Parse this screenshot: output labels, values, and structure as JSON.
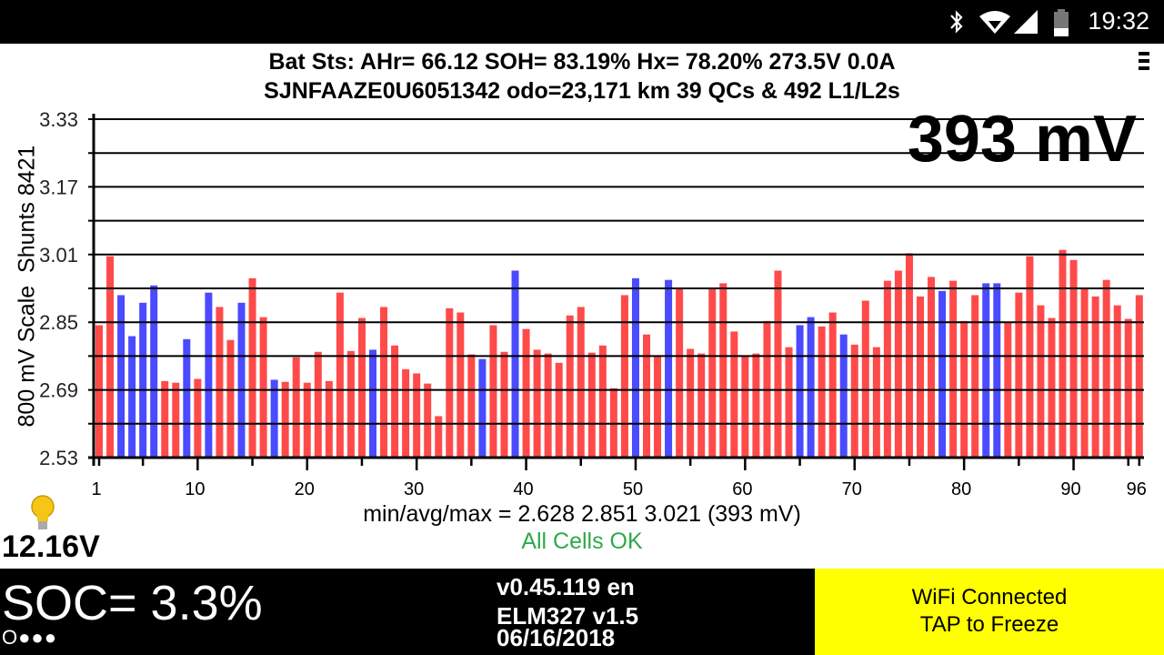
{
  "status_bar": {
    "time": "19:32",
    "icons": [
      "bluetooth-icon",
      "wifi-icon",
      "signal-icon",
      "battery-icon"
    ]
  },
  "header": {
    "line1": "Bat Sts:  AHr= 66.12  SOH= 83.19%   Hx= 78.20%   273.5V 0.0A",
    "line2": "SJNFAAZE0U6051342 odo=23,171 km  39 QCs & 492 L1/L2s",
    "delta_big": "393 mV"
  },
  "colors": {
    "normal_bar": "#ff4a4a",
    "shunt_bar": "#4a4aff",
    "ok_text": "#2fa84a",
    "wifi_bg": "#ffff00"
  },
  "chart_data": {
    "type": "bar",
    "title": "",
    "ylabel": "800 mV Scale  Shunts 8421",
    "xlabel": "",
    "ylim": [
      2.53,
      3.33
    ],
    "yticks": [
      "3.33",
      "3.17",
      "3.01",
      "2.85",
      "2.69",
      "2.53"
    ],
    "xticks": [
      "1",
      "10",
      "20",
      "30",
      "40",
      "50",
      "60",
      "70",
      "80",
      "90",
      "96"
    ],
    "xtick_values": [
      1,
      10,
      20,
      30,
      40,
      50,
      60,
      70,
      80,
      90,
      96
    ],
    "grid": true,
    "cells": [
      1,
      2,
      3,
      4,
      5,
      6,
      7,
      8,
      9,
      10,
      11,
      12,
      13,
      14,
      15,
      16,
      17,
      18,
      19,
      20,
      21,
      22,
      23,
      24,
      25,
      26,
      27,
      28,
      29,
      30,
      31,
      32,
      33,
      34,
      35,
      36,
      37,
      38,
      39,
      40,
      41,
      42,
      43,
      44,
      45,
      46,
      47,
      48,
      49,
      50,
      51,
      52,
      53,
      54,
      55,
      56,
      57,
      58,
      59,
      60,
      61,
      62,
      63,
      64,
      65,
      66,
      67,
      68,
      69,
      70,
      71,
      72,
      73,
      74,
      75,
      76,
      77,
      78,
      79,
      80,
      81,
      82,
      83,
      84,
      85,
      86,
      87,
      88,
      89,
      90,
      91,
      92,
      93,
      94,
      95,
      96
    ],
    "values": [
      2.843,
      3.006,
      2.914,
      2.817,
      2.896,
      2.937,
      2.711,
      2.707,
      2.81,
      2.716,
      2.92,
      2.886,
      2.808,
      2.896,
      2.954,
      2.862,
      2.714,
      2.709,
      2.767,
      2.707,
      2.78,
      2.711,
      2.92,
      2.782,
      2.86,
      2.785,
      2.886,
      2.795,
      2.739,
      2.729,
      2.705,
      2.628,
      2.883,
      2.873,
      2.774,
      2.763,
      2.843,
      2.78,
      2.972,
      2.834,
      2.785,
      2.776,
      2.754,
      2.866,
      2.886,
      2.778,
      2.795,
      2.694,
      2.914,
      2.954,
      2.821,
      2.769,
      2.95,
      2.931,
      2.787,
      2.776,
      2.931,
      2.942,
      2.828,
      2.772,
      2.776,
      2.853,
      2.972,
      2.791,
      2.843,
      2.862,
      2.84,
      2.873,
      2.821,
      2.797,
      2.901,
      2.791,
      2.948,
      2.972,
      3.013,
      2.911,
      2.957,
      2.924,
      2.948,
      2.853,
      2.914,
      2.942,
      2.942,
      2.851,
      2.92,
      3.006,
      2.89,
      2.86,
      3.021,
      2.997,
      2.929,
      2.911,
      2.95,
      2.89,
      2.858,
      2.914
    ],
    "shunted_cells": [
      3,
      4,
      5,
      6,
      9,
      11,
      14,
      17,
      26,
      36,
      39,
      50,
      53,
      65,
      66,
      69,
      78,
      82,
      83
    ]
  },
  "stats": {
    "summary": "min/avg/max = 2.628 2.851 3.021  (393 mV)",
    "status": "All Cells OK"
  },
  "aux_battery": {
    "voltage": "12.16V",
    "icon": "lightbulb-icon"
  },
  "footer": {
    "soc": "SOC= 3.3%",
    "dots": "O●●●",
    "version": "v0.45.119 en",
    "adapter": "ELM327 v1.5",
    "date": "06/16/2018",
    "wifi_line1": "WiFi Connected",
    "wifi_line2": "TAP to Freeze"
  }
}
